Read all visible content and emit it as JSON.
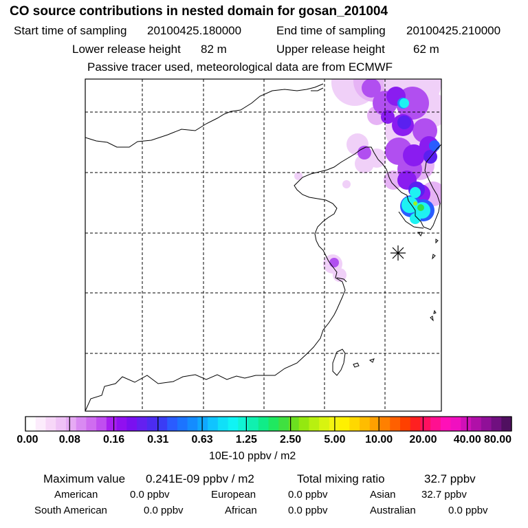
{
  "header": {
    "title": "CO  source contributions in nested domain for gosan_201004",
    "start_label": "Start time of sampling",
    "start_value": "20100425.180000",
    "end_label": "End time of sampling",
    "end_value": "20100425.210000",
    "lower_label": "Lower release height",
    "lower_value": "82 m",
    "upper_label": "Upper release height",
    "upper_value": "62 m",
    "note": "Passive tracer used, meteorological data are from ECMWF"
  },
  "map": {
    "receptor_marker": "asterisk-station-marker",
    "plume_colors": {
      "light": "#f0d0f8",
      "light2": "#e6b3f5",
      "violet": "#b14ff0",
      "purple": "#8a1cf0",
      "indigo": "#5a20f0",
      "blue": "#2a5cff",
      "azure": "#1890ff",
      "cyan": "#1ef2f2",
      "green": "#34e048",
      "yellow_green": "#9ef020"
    }
  },
  "colorbar": {
    "colors": [
      "#ffffff",
      "#fcecfc",
      "#f7d7f8",
      "#efc2f6",
      "#e6aaf4",
      "#d98af2",
      "#cf6df0",
      "#c04ef0",
      "#a81ff0",
      "#9010f0",
      "#7a10f0",
      "#6420f0",
      "#4c2cf0",
      "#3a3cf5",
      "#2a5cff",
      "#1c74ff",
      "#148cff",
      "#10a8ff",
      "#10c4ff",
      "#10e0f8",
      "#10f4f4",
      "#10f4d4",
      "#10f0b0",
      "#10ec88",
      "#20e860",
      "#40e040",
      "#6ce020",
      "#94e810",
      "#b8f010",
      "#d8f410",
      "#f4f410",
      "#fff000",
      "#ffd800",
      "#ffbc00",
      "#ffa000",
      "#ff8000",
      "#ff6000",
      "#ff4000",
      "#ff2020",
      "#ff1060",
      "#ff1090",
      "#ff10b8",
      "#f010c0",
      "#d010b8",
      "#b010a8",
      "#901098",
      "#701080",
      "#501060"
    ],
    "labels": [
      "0.00",
      "0.08",
      "0.16",
      "0.31",
      "0.63",
      "1.25",
      "2.50",
      "5.00",
      "10.00",
      "20.00",
      "40.00",
      "80.00"
    ],
    "unit": "10E-10 ppbv / m2"
  },
  "summary": {
    "max_label": "Maximum value",
    "max_value": "0.241E-09 ppbv / m2",
    "total_label": "Total mixing ratio",
    "total_value": "32.7 ppbv",
    "regions": [
      {
        "name": "American",
        "value": "0.0 ppbv"
      },
      {
        "name": "European",
        "value": "0.0 ppbv"
      },
      {
        "name": "Asian",
        "value": "32.7 ppbv"
      },
      {
        "name": "South American",
        "value": "0.0 ppbv"
      },
      {
        "name": "African",
        "value": "0.0 ppbv"
      },
      {
        "name": "Australian",
        "value": "0.0 ppbv"
      }
    ]
  }
}
